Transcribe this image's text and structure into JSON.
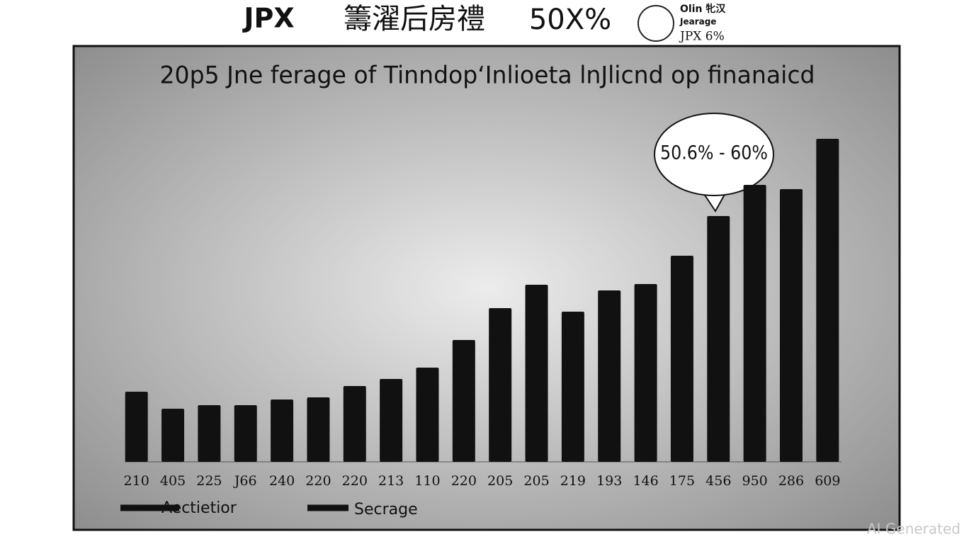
{
  "header": {
    "parts": [
      "JPX",
      "籌濯后房禮",
      "50X%"
    ],
    "badge": [
      "Olin 牝汉",
      "Jearage",
      "JPX 6%"
    ]
  },
  "chart_data": {
    "type": "bar",
    "title": "20p5 Jne ferage of Tinndop‘Inlioeta lnJlicnd op finanaicd",
    "annotation": "50.6% - 60%",
    "categories": [
      "210",
      "405",
      "225",
      "J66",
      "240",
      "220",
      "220",
      "213",
      "110",
      "220",
      "205",
      "205",
      "219",
      "193",
      "146",
      "175",
      "456",
      "950",
      "286",
      "609"
    ],
    "values": [
      99,
      75,
      80,
      80,
      88,
      91,
      107,
      117,
      133,
      172,
      217,
      250,
      212,
      242,
      251,
      291,
      347,
      391,
      385,
      456
    ],
    "color": "#111111",
    "legend": [
      "Aectietior",
      "Secrage"
    ]
  },
  "watermark": "AI Generated"
}
